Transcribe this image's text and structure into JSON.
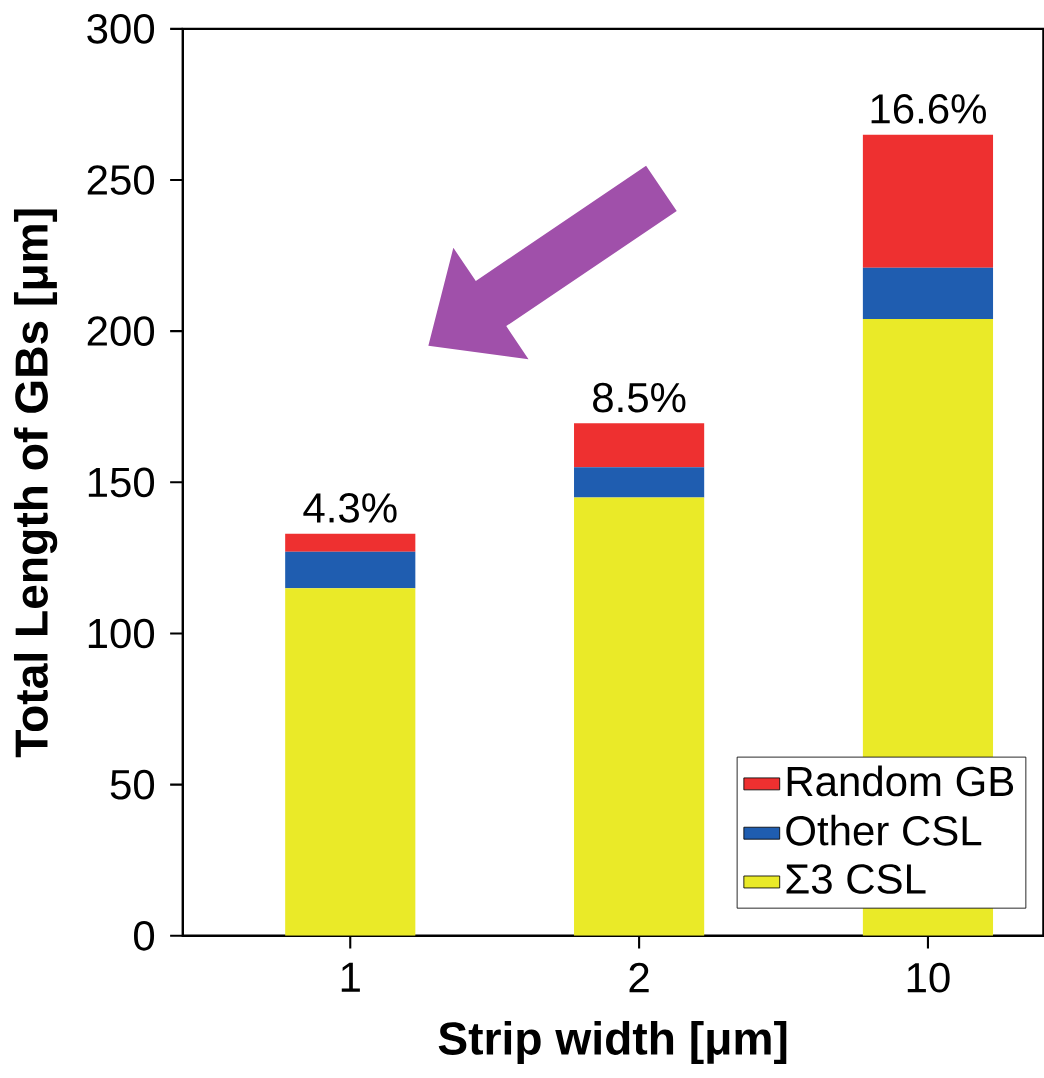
{
  "chart_data": {
    "type": "bar",
    "stacked": true,
    "xlabel": "Strip width [μm]",
    "ylabel": "Total Length of GBs [μm]",
    "categories": [
      "1",
      "2",
      "10"
    ],
    "series": [
      {
        "name": "Σ3 CSL",
        "color": "#eaea28",
        "values": [
          115,
          145,
          204
        ]
      },
      {
        "name": "Other CSL",
        "color": "#1f5db0",
        "values": [
          12,
          10,
          17
        ]
      },
      {
        "name": "Random GB",
        "color": "#ee3030",
        "values": [
          6,
          14.5,
          44
        ]
      }
    ],
    "ylim": [
      0,
      300
    ],
    "yticks": [
      0,
      50,
      100,
      150,
      200,
      250,
      300
    ],
    "legend": "bottom right",
    "annotations": [
      "4.3%",
      "8.5%",
      "16.6%"
    ]
  }
}
